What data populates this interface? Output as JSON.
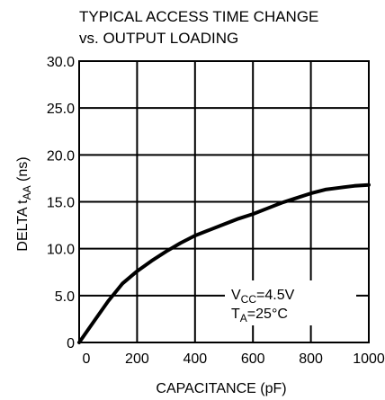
{
  "chart_data": {
    "type": "line",
    "title_line1": "TYPICAL ACCESS TIME CHANGE",
    "title_line2": "vs. OUTPUT LOADING",
    "xlabel": "CAPACITANCE (pF)",
    "ylabel": {
      "prefix": "DELTA t",
      "sub": "AA",
      "suffix": " (ns)"
    },
    "xlim": [
      0,
      1000
    ],
    "ylim": [
      0,
      30
    ],
    "x_ticks": [
      0,
      200,
      400,
      600,
      800,
      1000
    ],
    "x_tick_labels": [
      "0",
      "200",
      "400",
      "600",
      "800",
      "1000"
    ],
    "y_ticks": [
      0,
      5,
      10,
      15,
      20,
      25,
      30
    ],
    "y_tick_labels": [
      "0",
      "5.0",
      "10.0",
      "15.0",
      "20.0",
      "25.0",
      "30.0"
    ],
    "grid": true,
    "legend_placement": "bottom-right",
    "annotation": {
      "vcc_main": "V",
      "vcc_sub": "CC",
      "vcc_value": "=4.5V",
      "ta_main": "T",
      "ta_sub": "A",
      "ta_value": "=25°C"
    },
    "series": [
      {
        "x": [
          0,
          50,
          100,
          150,
          200,
          250,
          300,
          350,
          400,
          450,
          500,
          550,
          600,
          650,
          700,
          750,
          800,
          850,
          900,
          950,
          1000
        ],
        "y": [
          0,
          2.2,
          4.4,
          6.3,
          7.6,
          8.7,
          9.7,
          10.6,
          11.4,
          12.0,
          12.6,
          13.2,
          13.7,
          14.3,
          14.9,
          15.4,
          15.9,
          16.3,
          16.5,
          16.7,
          16.8
        ]
      }
    ],
    "colors": {
      "line": "#000000",
      "grid": "#000000",
      "background": "#ffffff"
    }
  }
}
